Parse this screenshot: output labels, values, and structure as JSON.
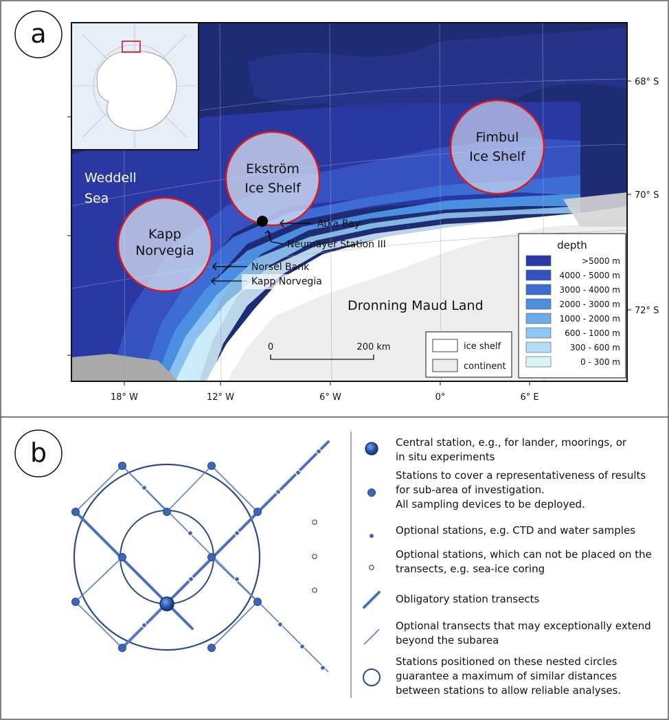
{
  "panel_a": {
    "letter": "a",
    "places": {
      "weddell_sea_l1": "Weddell",
      "weddell_sea_l2": "Sea",
      "kapp_norvegia_l1": "Kapp",
      "kapp_norvegia_l2": "Norvegia",
      "ekstrom_l1": "Ekström",
      "ekstrom_l2": "Ice Shelf",
      "fimbul_l1": "Fimbul",
      "fimbul_l2": "Ice Shelf",
      "atka_bay": "Atka Bay",
      "neumayer": "Neumayer Station III",
      "norsel_bank": "Norsel Bank",
      "kapp_norvegia_small": "Kapp Norvegia",
      "dronning_maud_land": "Dronning Maud Land"
    },
    "lon_ticks": [
      "18° W",
      "12° W",
      "6° W",
      "0°",
      "6° E"
    ],
    "lat_ticks": [
      "68° S",
      "70° S",
      "72° S"
    ],
    "scale_bar": {
      "start": "0",
      "end": "200 km"
    },
    "land_legend": [
      {
        "label": "ice shelf",
        "color": "#ffffff"
      },
      {
        "label": "continent",
        "color": "#eeeeee"
      }
    ],
    "depth_legend": {
      "title": "depth",
      "items": [
        {
          "label": ">5000 m",
          "color": "#2b3aa8"
        },
        {
          "label": "4000 - 5000 m",
          "color": "#3552c0"
        },
        {
          "label": "3000 - 4000 m",
          "color": "#3d6dd4"
        },
        {
          "label": "2000 - 3000 m",
          "color": "#4a8fe0"
        },
        {
          "label": "1000 - 2000 m",
          "color": "#6aaaea"
        },
        {
          "label": "600 - 1000 m",
          "color": "#90c6f2"
        },
        {
          "label": "300 - 600 m",
          "color": "#b5dcf7"
        },
        {
          "label": "0 - 300 m",
          "color": "#d8f4fb"
        }
      ]
    },
    "colors": {
      "ocean_dark": "#1f2b72",
      "circle_red": "#e0161b",
      "continent": "#eeeeee"
    }
  },
  "panel_b": {
    "letter": "b",
    "legend": [
      {
        "symbol": "central-station",
        "lines": [
          "Central station, e.g., for lander, moorings, or",
          "in situ experiments"
        ]
      },
      {
        "symbol": "station",
        "lines": [
          "Stations to cover a representativeness of results",
          "for sub-area of investigation.",
          "All sampling devices to be deployed."
        ]
      },
      {
        "symbol": "optional-station",
        "lines": [
          "Optional stations, e.g. CTD and water samples"
        ]
      },
      {
        "symbol": "off-transect-station",
        "lines": [
          "Optional stations, which can not be placed on the",
          "transects, e.g. sea-ice coring"
        ]
      },
      {
        "symbol": "obligatory-transect",
        "lines": [
          "Obligatory station transects"
        ]
      },
      {
        "symbol": "optional-transect",
        "lines": [
          "Optional transects that may exceptionally extend",
          "beyond the subarea"
        ]
      },
      {
        "symbol": "nested-circle",
        "lines": [
          "Stations positioned on these nested circles",
          "guarantee a maximum of similar distances",
          "between stations to allow reliable analyses."
        ]
      }
    ],
    "colors": {
      "station": "#3e66b8",
      "line": "#4a70c0",
      "circle": "#2c4a8e"
    }
  }
}
